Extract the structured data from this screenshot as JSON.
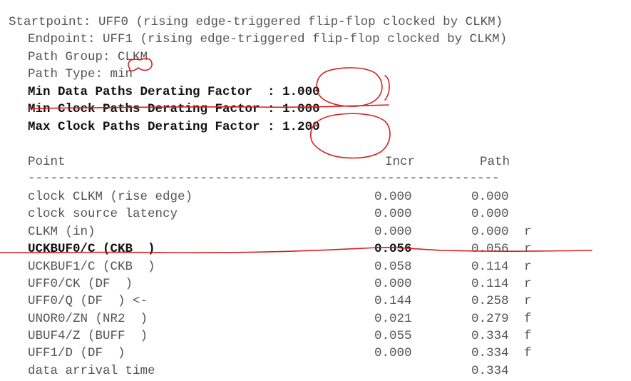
{
  "header": {
    "startpoint": "Startpoint: UFF0 (rising edge-triggered flip-flop clocked by CLKM)",
    "endpoint": "Endpoint: UFF1 (rising edge-triggered flip-flop clocked by CLKM)",
    "path_group": "Path Group: CLKM",
    "path_type": "Path Type: min",
    "derate_min_data": "Min Data Paths Derating Factor  : 1.000",
    "derate_min_clock": "Min Clock Paths Derating Factor : 1.000",
    "derate_max_clock": "Max Clock Paths Derating Factor : 1.200"
  },
  "table": {
    "headers": {
      "point": "Point",
      "incr": "Incr",
      "path": "Path"
    },
    "separator": "---------------------------------------------------------------",
    "rows": [
      {
        "point": "clock CLKM (rise edge)",
        "incr": "0.000",
        "path": "0.000",
        "flag": ""
      },
      {
        "point": "clock source latency",
        "incr": "0.000",
        "path": "0.000",
        "flag": ""
      },
      {
        "point": "CLKM (in)",
        "incr": "0.000",
        "path": "0.000",
        "flag": "r"
      },
      {
        "point": "UCKBUF0/C (CKB  )",
        "incr": "0.056",
        "path": "0.056",
        "flag": "r"
      },
      {
        "point": "UCKBUF1/C (CKB  )",
        "incr": "0.058",
        "path": "0.114",
        "flag": "r"
      },
      {
        "point": "UFF0/CK (DF  )",
        "incr": "0.000",
        "path": "0.114",
        "flag": "r"
      },
      {
        "point": "UFF0/Q (DF  ) <-",
        "incr": "0.144",
        "path": "0.258",
        "flag": "r"
      },
      {
        "point": "UNOR0/ZN (NR2  )",
        "incr": "0.021",
        "path": "0.279",
        "flag": "f"
      },
      {
        "point": "UBUF4/Z (BUFF  )",
        "incr": "0.055",
        "path": "0.334",
        "flag": "f"
      },
      {
        "point": "UFF1/D (DF  )",
        "incr": "0.000",
        "path": "0.334",
        "flag": "f"
      }
    ],
    "footer": {
      "point": "data arrival time",
      "path": "0.334"
    }
  },
  "colors": {
    "text": "#555555",
    "bold_text": "#111111",
    "annotation": "#d62020"
  }
}
